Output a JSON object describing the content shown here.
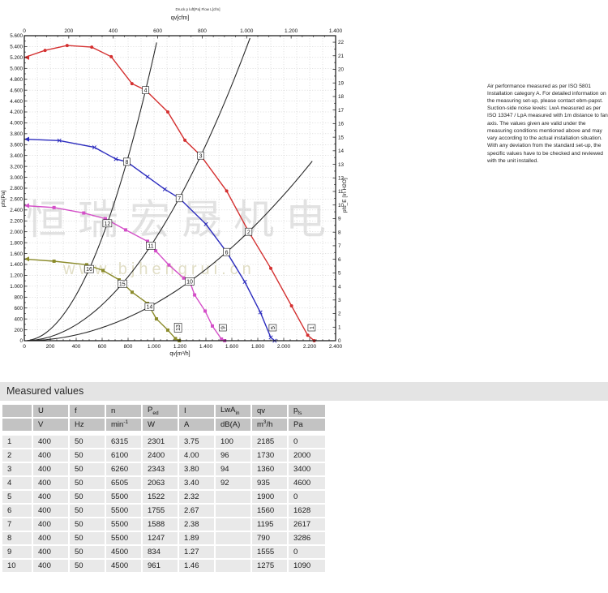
{
  "section_title": "Measured values",
  "notes_text": "Air performance measured as per ISO 5801 Installation category A. For detailed information on the measuring set-up, please contact ebm-papst. Suction-side noise levels: LwA measured as per ISO 13347 / LpA measured with 1m distance to fan axis. The values given are valid under the measuring conditions mentioned above and may vary according to the actual installation situation. With any deviation from the standard set-up, the specific values have to be checked and reviewed with the unit installed.",
  "watermark": {
    "cjk": "恒瑞宏晟机电",
    "url": "www.bjhengrui.cn"
  },
  "chart_data": {
    "type": "line",
    "caption": "Druck p luft[Pa] Flow L[cfm]",
    "axes": {
      "x_bottom": {
        "label": "qv[m³/h]",
        "min": 0,
        "max": 2400,
        "major": 200,
        "minor": 50
      },
      "x_top": {
        "label": "qv[cfm]",
        "min": 0,
        "max": 1400,
        "major": 200,
        "minor": 50
      },
      "y_left": {
        "label": "pfs[Pa]",
        "min": 0,
        "max": 5600,
        "major": 200,
        "minor": 100
      },
      "y_right": {
        "label": "pfs_E [In H2O]",
        "min": 0,
        "max": 22,
        "major": 1,
        "minor": 0.5,
        "pa_per_unit": 249.1
      }
    },
    "grid": {
      "x_step": 100,
      "y_step": 200,
      "color": "#b9b9b9"
    },
    "series": [
      {
        "name": "curve-6315-min",
        "color": "#d43030",
        "marker": "circle",
        "points": [
          [
            0,
            5200
          ],
          [
            160,
            5330
          ],
          [
            330,
            5420
          ],
          [
            520,
            5390
          ],
          [
            670,
            5215
          ],
          [
            830,
            4720
          ],
          [
            935,
            4600
          ],
          [
            1106,
            4200
          ],
          [
            1238,
            3680
          ],
          [
            1360,
            3400
          ],
          [
            1560,
            2750
          ],
          [
            1730,
            2000
          ],
          [
            1900,
            1330
          ],
          [
            2060,
            640
          ],
          [
            2185,
            100
          ],
          [
            2235,
            0
          ]
        ]
      },
      {
        "name": "curve-5500-min",
        "color": "#2c2cbe",
        "marker": "x",
        "points": [
          [
            0,
            3700
          ],
          [
            270,
            3675
          ],
          [
            540,
            3550
          ],
          [
            706,
            3335
          ],
          [
            790,
            3286
          ],
          [
            950,
            3010
          ],
          [
            1083,
            2780
          ],
          [
            1195,
            2617
          ],
          [
            1400,
            2140
          ],
          [
            1560,
            1628
          ],
          [
            1700,
            1080
          ],
          [
            1820,
            520
          ],
          [
            1900,
            60
          ],
          [
            1930,
            0
          ]
        ]
      },
      {
        "name": "curve-4500-min",
        "color": "#d44fc8",
        "marker": "square",
        "points": [
          [
            0,
            2480
          ],
          [
            229,
            2445
          ],
          [
            458,
            2345
          ],
          [
            625,
            2240
          ],
          [
            781,
            2035
          ],
          [
            950,
            1825
          ],
          [
            1013,
            1650
          ],
          [
            1115,
            1390
          ],
          [
            1229,
            1150
          ],
          [
            1275,
            1090
          ],
          [
            1313,
            840
          ],
          [
            1394,
            545
          ],
          [
            1450,
            270
          ],
          [
            1520,
            30
          ],
          [
            1545,
            0
          ]
        ]
      },
      {
        "name": "curve-low-speed",
        "color": "#8b8b2b",
        "marker": "square",
        "points": [
          [
            0,
            1500
          ],
          [
            229,
            1460
          ],
          [
            481,
            1395
          ],
          [
            606,
            1290
          ],
          [
            731,
            1117
          ],
          [
            831,
            890
          ],
          [
            950,
            685
          ],
          [
            1019,
            400
          ],
          [
            1106,
            195
          ],
          [
            1165,
            40
          ],
          [
            1195,
            0
          ]
        ]
      }
    ],
    "system_parabolas": [
      {
        "k": 0.005262,
        "q_end": 1032
      },
      {
        "k": 0.001835,
        "q_end": 1748
      },
      {
        "k": 0.000669,
        "q_end": 2230
      }
    ],
    "point_labels": [
      {
        "n": "4",
        "q": 935,
        "p": 4600
      },
      {
        "n": "3",
        "q": 1360,
        "p": 3400
      },
      {
        "n": "2",
        "q": 1730,
        "p": 2000
      },
      {
        "n": "8",
        "q": 790,
        "p": 3286
      },
      {
        "n": "7",
        "q": 1195,
        "p": 2617
      },
      {
        "n": "6",
        "q": 1560,
        "p": 1628
      },
      {
        "n": "12",
        "q": 640,
        "p": 2155
      },
      {
        "n": "11",
        "q": 975,
        "p": 1745
      },
      {
        "n": "10",
        "q": 1275,
        "p": 1090
      },
      {
        "n": "16",
        "q": 500,
        "p": 1316
      },
      {
        "n": "15",
        "q": 755,
        "p": 1046
      },
      {
        "n": "14",
        "q": 965,
        "p": 625
      }
    ],
    "point_labels_rotated": [
      {
        "n": "1",
        "q": 2215
      },
      {
        "n": "5",
        "q": 1915
      },
      {
        "n": "9",
        "q": 1530
      },
      {
        "n": "13",
        "q": 1185
      }
    ]
  },
  "measured_values": {
    "columns": [
      {
        "t": ""
      },
      {
        "t": "U"
      },
      {
        "t": "f"
      },
      {
        "t": "n"
      },
      {
        "t": "P",
        "sub": "ed"
      },
      {
        "t": "I"
      },
      {
        "t": "LwA",
        "sub": "in"
      },
      {
        "t": "qv"
      },
      {
        "t": "p",
        "sub": "fs"
      }
    ],
    "units": [
      {
        "t": ""
      },
      {
        "t": "V"
      },
      {
        "t": "Hz"
      },
      {
        "t": "min",
        "sup": "-1"
      },
      {
        "t": "W"
      },
      {
        "t": "A"
      },
      {
        "t": "dB(A)"
      },
      {
        "t": "m",
        "sup": "3",
        "t2": "/h"
      },
      {
        "t": "Pa"
      }
    ],
    "rows": [
      [
        "1",
        "400",
        "50",
        "6315",
        "2301",
        "3.75",
        "100",
        "2185",
        "0"
      ],
      [
        "2",
        "400",
        "50",
        "6100",
        "2400",
        "4.00",
        "96",
        "1730",
        "2000"
      ],
      [
        "3",
        "400",
        "50",
        "6260",
        "2343",
        "3.80",
        "94",
        "1360",
        "3400"
      ],
      [
        "4",
        "400",
        "50",
        "6505",
        "2063",
        "3.40",
        "92",
        "935",
        "4600"
      ],
      [
        "5",
        "400",
        "50",
        "5500",
        "1522",
        "2.32",
        "",
        "1900",
        "0"
      ],
      [
        "6",
        "400",
        "50",
        "5500",
        "1755",
        "2.67",
        "",
        "1560",
        "1628"
      ],
      [
        "7",
        "400",
        "50",
        "5500",
        "1588",
        "2.38",
        "",
        "1195",
        "2617"
      ],
      [
        "8",
        "400",
        "50",
        "5500",
        "1247",
        "1.89",
        "",
        "790",
        "3286"
      ],
      [
        "9",
        "400",
        "50",
        "4500",
        "834",
        "1.27",
        "",
        "1555",
        "0"
      ],
      [
        "10",
        "400",
        "50",
        "4500",
        "961",
        "1.46",
        "",
        "1275",
        "1090"
      ]
    ]
  }
}
